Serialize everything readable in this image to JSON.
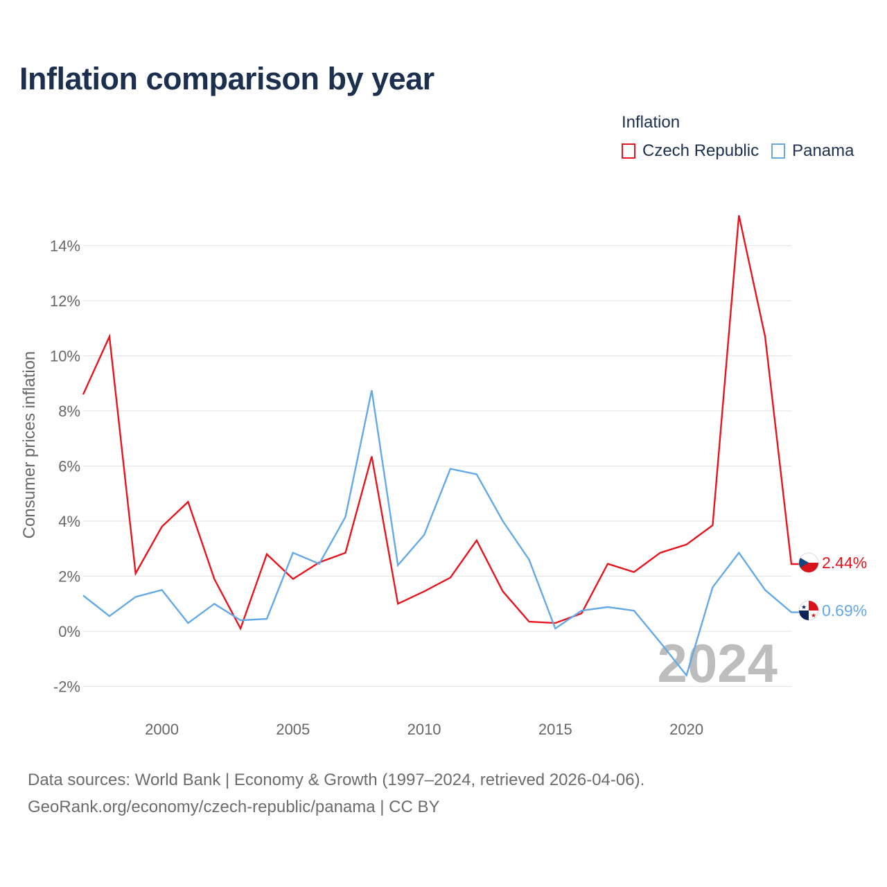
{
  "title": "Inflation comparison by year",
  "legend": {
    "title": "Inflation",
    "items": [
      {
        "label": "Czech Republic",
        "color": "#e8141d"
      },
      {
        "label": "Panama",
        "color": "#64a9e6"
      }
    ]
  },
  "footer": {
    "line1": "Data sources: World Bank | Economy & Growth (1997–2024, retrieved 2026-04-06).",
    "line2": "GeoRank.org/economy/czech-republic/panama | CC BY"
  },
  "chart_data": {
    "type": "line",
    "title": "Inflation comparison by year",
    "xlabel": "",
    "ylabel": "Consumer prices inflation",
    "xlim": [
      1997,
      2024
    ],
    "ylim": [
      -3,
      15
    ],
    "x_ticks": [
      2000,
      2005,
      2010,
      2015,
      2020
    ],
    "y_ticks": [
      -2,
      0,
      2,
      4,
      6,
      8,
      10,
      12,
      14
    ],
    "y_tick_labels": [
      "-2%",
      "0%",
      "2%",
      "4%",
      "6%",
      "8%",
      "10%",
      "12%",
      "14%"
    ],
    "x": [
      1997,
      1998,
      1999,
      2000,
      2001,
      2002,
      2003,
      2004,
      2005,
      2006,
      2007,
      2008,
      2009,
      2010,
      2011,
      2012,
      2013,
      2014,
      2015,
      2016,
      2017,
      2018,
      2019,
      2020,
      2021,
      2022,
      2023,
      2024
    ],
    "series": [
      {
        "name": "Czech Republic",
        "color": "#e8141d",
        "values": [
          8.6,
          10.7,
          2.1,
          3.8,
          4.7,
          1.9,
          0.1,
          2.8,
          1.9,
          2.5,
          2.85,
          6.35,
          1.0,
          1.45,
          1.95,
          3.3,
          1.45,
          0.35,
          0.3,
          0.65,
          2.45,
          2.15,
          2.85,
          3.15,
          3.85,
          15.1,
          10.7,
          2.44
        ],
        "end_label": "2.44%"
      },
      {
        "name": "Panama",
        "color": "#64a9e6",
        "values": [
          1.3,
          0.55,
          1.25,
          1.5,
          0.3,
          1.0,
          0.4,
          0.45,
          2.85,
          2.45,
          4.15,
          8.75,
          2.4,
          3.5,
          5.9,
          5.7,
          4.0,
          2.6,
          0.1,
          0.75,
          0.88,
          0.75,
          -0.4,
          -1.6,
          1.6,
          2.85,
          1.5,
          0.69
        ],
        "end_label": "0.69%"
      }
    ],
    "annotation": "2024"
  }
}
